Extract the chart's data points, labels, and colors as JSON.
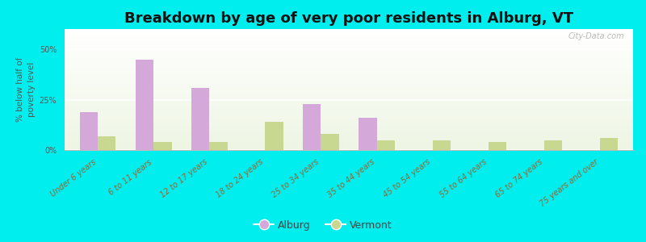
{
  "title": "Breakdown by age of very poor residents in Alburg, VT",
  "ylabel": "% below half of\npoverty level",
  "categories": [
    "Under 6 years",
    "6 to 11 years",
    "12 to 17 years",
    "18 to 24 years",
    "25 to 34 years",
    "35 to 44 years",
    "45 to 54 years",
    "55 to 64 years",
    "65 to 74 years",
    "75 years and over"
  ],
  "alburg_values": [
    19,
    45,
    31,
    0,
    23,
    16,
    0,
    0,
    0,
    0
  ],
  "vermont_values": [
    7,
    4,
    4,
    14,
    8,
    5,
    5,
    4,
    5,
    6
  ],
  "alburg_color": "#d4a8d8",
  "vermont_color": "#c8d890",
  "bar_width": 0.32,
  "ylim": [
    0,
    60
  ],
  "yticks": [
    0,
    25,
    50
  ],
  "ytick_labels": [
    "0%",
    "25%",
    "50%"
  ],
  "outer_background": "#00eeee",
  "title_fontsize": 13,
  "axis_label_fontsize": 7.5,
  "tick_fontsize": 7,
  "legend_labels": [
    "Alburg",
    "Vermont"
  ],
  "watermark": "City-Data.com",
  "tick_color": "#996633",
  "ylabel_color": "#555555",
  "ytick_color": "#555555"
}
